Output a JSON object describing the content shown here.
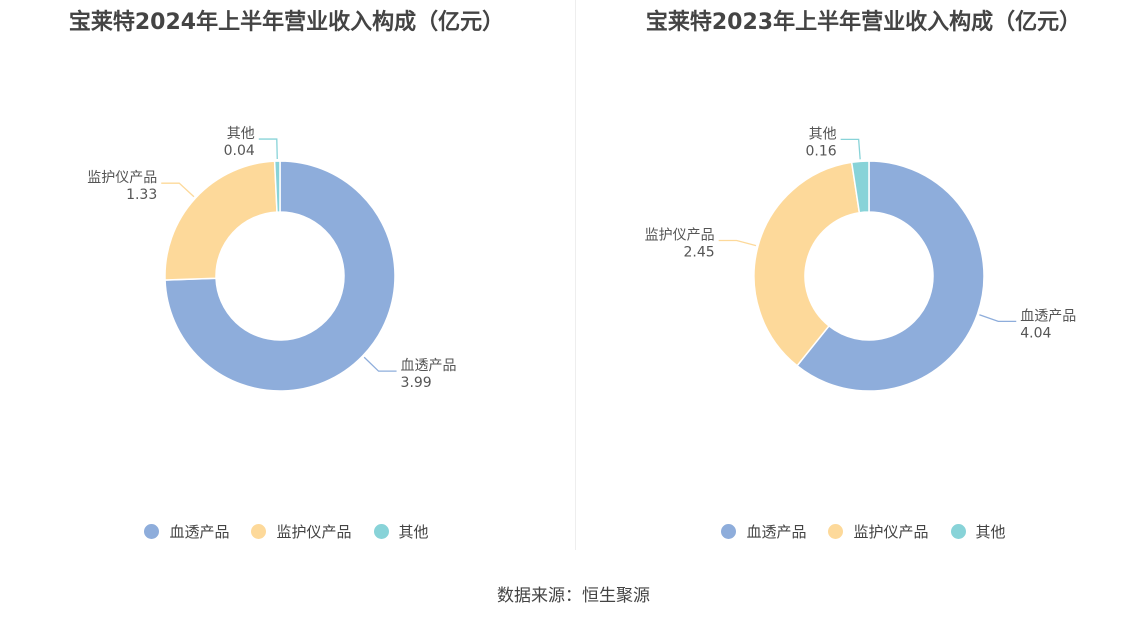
{
  "chart_data": [
    {
      "type": "pie",
      "title": "宝莱特2024年上半年营业收入构成（亿元）",
      "categories": [
        "血透产品",
        "监护仪产品",
        "其他"
      ],
      "values": [
        3.99,
        1.33,
        0.04
      ],
      "value_labels": [
        "3.99",
        "1.33",
        "0.04"
      ],
      "colors": [
        "#8eaddb",
        "#fdd99a",
        "#88d3d8"
      ],
      "legend": "bottom",
      "donut": true
    },
    {
      "type": "pie",
      "title": "宝莱特2023年上半年营业收入构成（亿元）",
      "categories": [
        "血透产品",
        "监护仪产品",
        "其他"
      ],
      "values": [
        4.04,
        2.45,
        0.16
      ],
      "value_labels": [
        "4.04",
        "2.45",
        "0.16"
      ],
      "colors": [
        "#8eaddb",
        "#fdd99a",
        "#88d3d8"
      ],
      "legend": "bottom",
      "donut": true
    }
  ],
  "source": "数据来源：恒生聚源"
}
